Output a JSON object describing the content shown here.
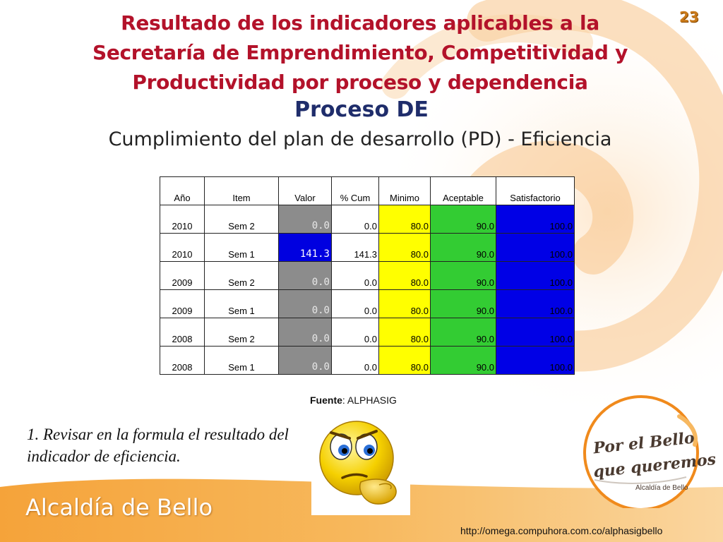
{
  "slide": {
    "title": "Resultado de los indicadores aplicables a la Secretaría de Emprendimiento, Competitividad y Productividad  por proceso y dependencia",
    "page_number": "23",
    "subtitle": "Proceso DE",
    "subsubtitle": "Cumplimiento del plan de desarrollo (PD) - Eficiencia"
  },
  "table": {
    "headers": [
      "Año",
      "Item",
      "Valor",
      "% Cum",
      "Minimo",
      "Aceptable",
      "Satisfactorio"
    ],
    "rows": [
      {
        "anio": "2010",
        "item": "Sem 2",
        "valor": "0.0",
        "pcum": "0.0",
        "minimo": "80.0",
        "aceptable": "90.0",
        "satisfactorio": "100.0",
        "valor_status": "gray"
      },
      {
        "anio": "2010",
        "item": "Sem 1",
        "valor": "141.3",
        "pcum": "141.3",
        "minimo": "80.0",
        "aceptable": "90.0",
        "satisfactorio": "100.0",
        "valor_status": "blue"
      },
      {
        "anio": "2009",
        "item": "Sem 2",
        "valor": "0.0",
        "pcum": "0.0",
        "minimo": "80.0",
        "aceptable": "90.0",
        "satisfactorio": "100.0",
        "valor_status": "gray"
      },
      {
        "anio": "2009",
        "item": "Sem 1",
        "valor": "0.0",
        "pcum": "0.0",
        "minimo": "80.0",
        "aceptable": "90.0",
        "satisfactorio": "100.0",
        "valor_status": "gray"
      },
      {
        "anio": "2008",
        "item": "Sem 2",
        "valor": "0.0",
        "pcum": "0.0",
        "minimo": "80.0",
        "aceptable": "90.0",
        "satisfactorio": "100.0",
        "valor_status": "gray"
      },
      {
        "anio": "2008",
        "item": "Sem 1",
        "valor": "0.0",
        "pcum": "0.0",
        "minimo": "80.0",
        "aceptable": "90.0",
        "satisfactorio": "100.0",
        "valor_status": "gray"
      }
    ]
  },
  "source": {
    "label": "Fuente",
    "value": ": ALPHASIG"
  },
  "note": {
    "text": "1. Revisar en la formula el resultado del indicador de eficiencia."
  },
  "emoji": {
    "icon": "thinking-face-icon"
  },
  "footer": {
    "brand": "Alcaldía de Bello",
    "url": "http://omega.compuhora.com.co/alphasigbello"
  },
  "logo": {
    "line1": "Por el Bello",
    "line2": "que queremos",
    "sub": "Alcaldía de Bello"
  },
  "colors": {
    "title": "#b3122a",
    "subtitle": "#1f2d6b",
    "minimo": "#ffff00",
    "aceptable": "#33cc33",
    "satisfactorio": "#0000e6",
    "gray_value": "#8c8c8c",
    "brand_orange": "#f08a1c"
  }
}
